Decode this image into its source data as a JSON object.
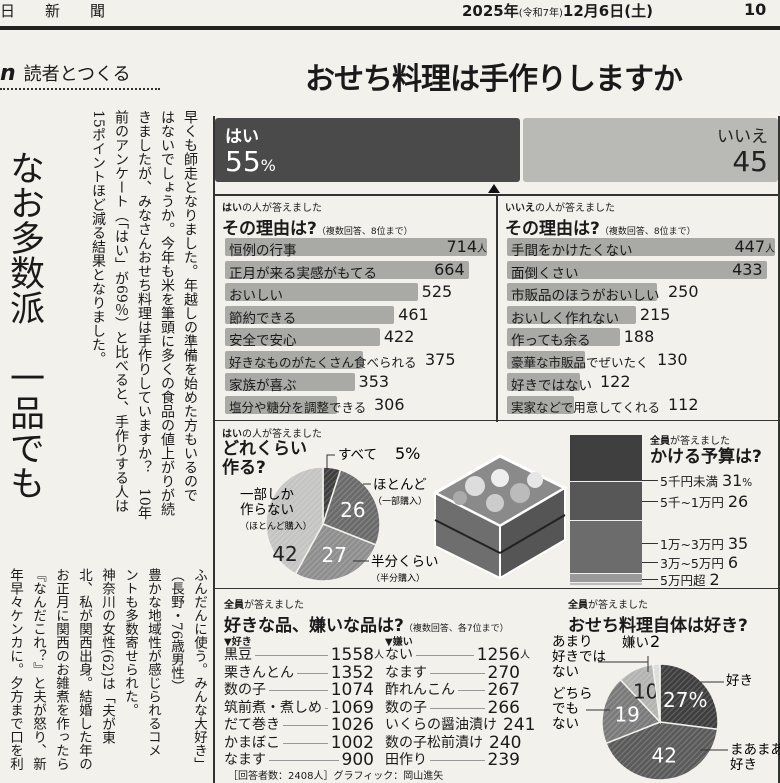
{
  "header": {
    "paper": "日新聞",
    "date": "2025年",
    "era": "(令和7年)",
    "day": "12月6日(土)",
    "page": "10"
  },
  "kicker": {
    "logo": "n",
    "label": "読者とつくる"
  },
  "title": "おせち料理は手作りしますか",
  "headline": "なお多数派　一品でも",
  "body_top": [
    "早くも師走となりました。年越しの準備を始めた方もいるので",
    "はないでしょうか。今年も米を筆頭に多くの食品の値上がりが続",
    "きましたが、みなさんおせち料理は手作りしていますか？　10年",
    "前のアンケート（「はい」が69％）と比べると、手作りする人は",
    "15ポイントほど減る結果となりました。"
  ],
  "body_bottom": [
    "ふんだんに使う。みんな大好き」",
    "（長野・76歳男性）",
    "豊かな地域性が感じられるコメ",
    "ントも多数寄せられた。",
    "神奈川の女性(62)は「夫が東",
    "北、私が関西出身。結婚した年の",
    "お正月に関西のお雑煮を作ったら",
    "『なんだこれ？』と夫が怒り、新",
    "年早々ケンカに。夕方まで口を利"
  ],
  "yes_no": {
    "yes_label": "はい",
    "yes_value": "55",
    "yes_unit": "%",
    "no_label": "いいえ",
    "no_value": "45",
    "yes_pct": 55,
    "no_pct": 45
  },
  "reasons_yes": {
    "who_bold": "はい",
    "who": "の人が答えました",
    "question": "その理由は?",
    "note": "（複数回答、8位まで）",
    "unit": "人",
    "items": [
      {
        "label": "恒例の行事",
        "value": 714
      },
      {
        "label": "正月が来る実感がもてる",
        "value": 664
      },
      {
        "label": "おいしい",
        "value": 525
      },
      {
        "label": "節約できる",
        "value": 461
      },
      {
        "label": "安全で安心",
        "value": 422
      },
      {
        "label": "好きなものがたくさん食べられる",
        "value": 375
      },
      {
        "label": "家族が喜ぶ",
        "value": 353
      },
      {
        "label": "塩分や糖分を調整できる",
        "value": 306
      }
    ]
  },
  "reasons_no": {
    "who_bold": "いいえ",
    "who": "の人が答えました",
    "question": "その理由は?",
    "note": "（複数回答、8位まで）",
    "unit": "人",
    "items": [
      {
        "label": "手間をかけたくない",
        "value": 447
      },
      {
        "label": "面倒くさい",
        "value": 433
      },
      {
        "label": "市販品のほうがおいしい",
        "value": 250
      },
      {
        "label": "おいしく作れない",
        "value": 215
      },
      {
        "label": "作っても余る",
        "value": 188
      },
      {
        "label": "豪華な市販品でぜいたく",
        "value": 130
      },
      {
        "label": "好きではない",
        "value": 122
      },
      {
        "label": "実家などで用意してくれる",
        "value": 112
      }
    ]
  },
  "how_much": {
    "who_bold": "はい",
    "who": "の人が答えました",
    "question": "どれくらい作る?",
    "slices": [
      {
        "label": "すべて",
        "value": 5,
        "text": "5%",
        "color": "#3e3e3e"
      },
      {
        "label": "ほとんど",
        "sub": "（一部購入）",
        "value": 26,
        "text": "26",
        "color": "#6a6a6a"
      },
      {
        "label": "半分くらい",
        "sub": "（半分購入）",
        "value": 27,
        "text": "27",
        "color": "#8e8e8e"
      },
      {
        "label": "一部しか作らない",
        "sub": "（ほとんど購入）",
        "value": 42,
        "text": "42",
        "color": "#c4c4c2"
      }
    ]
  },
  "budget": {
    "who_bold": "全員",
    "who": "が答えました",
    "question": "かける予算は?",
    "unit": "%",
    "items": [
      {
        "label": "5千円未満",
        "value": 31,
        "color": "#3f3f3f"
      },
      {
        "label": "5千~1万円",
        "value": 26,
        "color": "#575757"
      },
      {
        "label": "1万~3万円",
        "value": 35,
        "color": "#6c6c6c"
      },
      {
        "label": "3万~5万円",
        "value": 6,
        "color": "#9a9a9a"
      },
      {
        "label": "5万円超",
        "value": 2,
        "color": "#bdbdbd"
      }
    ]
  },
  "like_dislike": {
    "who_bold": "全員",
    "who": "が答えました",
    "question": "好きな品、嫌いな品は?",
    "note": "（複数回答、各7位まで）",
    "unit": "人",
    "like_header": "▼好き",
    "dislike_header": "▼嫌い",
    "likes": [
      {
        "label": "黒豆",
        "value": "1558"
      },
      {
        "label": "栗きんとん",
        "value": "1352"
      },
      {
        "label": "数の子",
        "value": "1074"
      },
      {
        "label": "筑前煮・煮しめ",
        "value": "1069"
      },
      {
        "label": "だて巻き",
        "value": "1026"
      },
      {
        "label": "かまぼこ",
        "value": "1002"
      },
      {
        "label": "なます",
        "value": "900"
      }
    ],
    "dislikes": [
      {
        "label": "ない",
        "value": "1256"
      },
      {
        "label": "なます",
        "value": "270"
      },
      {
        "label": "酢れんこん",
        "value": "267"
      },
      {
        "label": "数の子",
        "value": "266"
      },
      {
        "label": "いくらの醤油漬け",
        "value": "241"
      },
      {
        "label": "数の子松前漬け",
        "value": "240"
      },
      {
        "label": "田作り",
        "value": "239"
      }
    ]
  },
  "like_osechi": {
    "who_bold": "全員",
    "who": "が答えました",
    "question": "おせち料理自体は好き?",
    "slices": [
      {
        "label": "好き",
        "value": 27,
        "text": "27%",
        "color": "#3e3e3e"
      },
      {
        "label": "まあまあ好き",
        "value": 42,
        "text": "42",
        "color": "#5a5a5a"
      },
      {
        "label": "どちらでもない",
        "value": 19,
        "text": "19",
        "color": "#7a7a7a"
      },
      {
        "label": "あまり好きではない",
        "value": 10,
        "text": "10",
        "color": "#b3b3b1"
      },
      {
        "label": "嫌い",
        "value": 2,
        "text": "2",
        "color": "#dcdcda"
      }
    ]
  },
  "credit": "［回答者数：2408人］グラフィック：岡山進矢"
}
